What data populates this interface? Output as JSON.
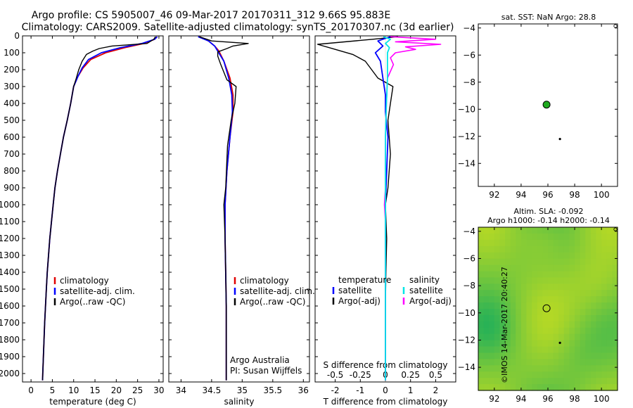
{
  "header": {
    "line1": "Argo profile: CS 5905007_46 09-Mar-2017 20170311_312 9.66S 95.883E",
    "line2": "Climatology: CARS2009. Satellite-adjusted climatology: synTS_20170307.nc (3d earlier)"
  },
  "credit": "©IMOS 14-Mar-2017 20:40:27",
  "colors": {
    "climatology": "#e00000",
    "satellite": "#0000ff",
    "argo": "#000000",
    "sal_satellite": "#00e6e6",
    "sal_argo": "#ff00ff",
    "marker": "#1faa1f"
  },
  "chart_data": [
    {
      "type": "line",
      "id": "temperature",
      "xlabel": "temperature (deg C)",
      "xlim": [
        -2,
        31
      ],
      "xticks": [
        0,
        5,
        10,
        15,
        20,
        25,
        30
      ],
      "ylim": [
        0,
        2050
      ],
      "yticks": [
        0,
        100,
        200,
        300,
        400,
        500,
        600,
        700,
        800,
        900,
        1000,
        1100,
        1200,
        1300,
        1400,
        1500,
        1600,
        1700,
        1800,
        1900,
        2000
      ],
      "legend": [
        "climatology",
        "satellite-adj. clim.",
        "Argo(..raw -QC)"
      ],
      "series": [
        {
          "name": "climatology",
          "points": [
            [
              29.6,
              5
            ],
            [
              29,
              20
            ],
            [
              26.5,
              45
            ],
            [
              22,
              70
            ],
            [
              17.5,
              100
            ],
            [
              14,
              140
            ],
            [
              12.2,
              190
            ],
            [
              11,
              240
            ],
            [
              10,
              300
            ],
            [
              9.3,
              400
            ],
            [
              8.5,
              500
            ],
            [
              7.6,
              600
            ],
            [
              6.9,
              700
            ],
            [
              6.2,
              800
            ],
            [
              5.6,
              900
            ],
            [
              5.2,
              1000
            ],
            [
              4.8,
              1100
            ],
            [
              4.4,
              1200
            ],
            [
              4.1,
              1300
            ],
            [
              3.8,
              1400
            ],
            [
              3.6,
              1500
            ],
            [
              3.4,
              1600
            ],
            [
              3.2,
              1700
            ],
            [
              3.05,
              1800
            ],
            [
              2.9,
              1900
            ],
            [
              2.75,
              2000
            ],
            [
              2.7,
              2040
            ]
          ]
        },
        {
          "name": "satellite-adj. clim.",
          "points": [
            [
              29.6,
              5
            ],
            [
              29,
              20
            ],
            [
              26,
              45
            ],
            [
              21,
              70
            ],
            [
              16.5,
              100
            ],
            [
              13.5,
              140
            ],
            [
              12,
              190
            ],
            [
              11,
              240
            ],
            [
              10,
              300
            ],
            [
              9.3,
              400
            ],
            [
              8.5,
              500
            ],
            [
              7.6,
              600
            ],
            [
              6.9,
              700
            ],
            [
              6.2,
              800
            ],
            [
              5.6,
              900
            ],
            [
              5.2,
              1000
            ],
            [
              4.8,
              1100
            ],
            [
              4.4,
              1200
            ],
            [
              4.1,
              1300
            ],
            [
              3.8,
              1400
            ],
            [
              3.6,
              1500
            ],
            [
              3.4,
              1600
            ],
            [
              3.2,
              1700
            ],
            [
              3.05,
              1800
            ],
            [
              2.9,
              1900
            ],
            [
              2.75,
              2000
            ],
            [
              2.7,
              2040
            ]
          ]
        },
        {
          "name": "Argo(..raw -QC)",
          "points": [
            [
              29.2,
              5
            ],
            [
              28.8,
              20
            ],
            [
              27.2,
              45
            ],
            [
              19,
              60
            ],
            [
              16,
              75
            ],
            [
              14.5,
              90
            ],
            [
              13,
              110
            ],
            [
              12,
              150
            ],
            [
              11.2,
              200
            ],
            [
              10.5,
              260
            ],
            [
              10,
              300
            ],
            [
              9.3,
              400
            ],
            [
              8.5,
              500
            ],
            [
              7.6,
              600
            ],
            [
              6.9,
              700
            ],
            [
              6.2,
              800
            ],
            [
              5.6,
              900
            ],
            [
              5.2,
              1000
            ],
            [
              4.8,
              1100
            ],
            [
              4.4,
              1200
            ],
            [
              4.1,
              1300
            ],
            [
              3.8,
              1400
            ],
            [
              3.6,
              1500
            ],
            [
              3.4,
              1600
            ],
            [
              3.2,
              1700
            ],
            [
              3.05,
              1800
            ],
            [
              2.9,
              1900
            ],
            [
              2.75,
              2000
            ],
            [
              2.7,
              2040
            ]
          ]
        }
      ]
    },
    {
      "type": "line",
      "id": "salinity",
      "xlabel": "salinity",
      "xlim": [
        33.8,
        36.1
      ],
      "xticks": [
        34,
        34.5,
        35,
        35.5,
        36
      ],
      "xticklabels": [
        "34",
        "34.5",
        "35",
        "35.5",
        "36"
      ],
      "ylim": [
        0,
        2050
      ],
      "legend": [
        "climatology",
        "satellite-adj. clim.",
        "Argo(..raw -QC)"
      ],
      "annotation": [
        "Argo Australia",
        "PI: Susan Wijffels"
      ],
      "series": [
        {
          "name": "climatology",
          "points": [
            [
              34.3,
              5
            ],
            [
              34.45,
              30
            ],
            [
              34.55,
              60
            ],
            [
              34.62,
              90
            ],
            [
              34.7,
              150
            ],
            [
              34.8,
              250
            ],
            [
              34.85,
              350
            ],
            [
              34.85,
              450
            ],
            [
              34.8,
              600
            ],
            [
              34.75,
              800
            ],
            [
              34.72,
              1000
            ],
            [
              34.72,
              1200
            ],
            [
              34.73,
              1400
            ],
            [
              34.74,
              1600
            ],
            [
              34.74,
              1800
            ],
            [
              34.74,
              2040
            ]
          ]
        },
        {
          "name": "satellite-adj. clim.",
          "points": [
            [
              34.28,
              5
            ],
            [
              34.45,
              30
            ],
            [
              34.55,
              60
            ],
            [
              34.6,
              90
            ],
            [
              34.7,
              150
            ],
            [
              34.78,
              250
            ],
            [
              34.83,
              350
            ],
            [
              34.84,
              450
            ],
            [
              34.8,
              600
            ],
            [
              34.75,
              800
            ],
            [
              34.72,
              1000
            ],
            [
              34.72,
              1200
            ],
            [
              34.73,
              1400
            ],
            [
              34.74,
              1600
            ],
            [
              34.74,
              1800
            ],
            [
              34.74,
              2040
            ]
          ]
        },
        {
          "name": "Argo(..raw -QC)",
          "points": [
            [
              34.3,
              5
            ],
            [
              34.5,
              30
            ],
            [
              35.1,
              45
            ],
            [
              34.85,
              60
            ],
            [
              34.75,
              75
            ],
            [
              34.6,
              95
            ],
            [
              34.6,
              120
            ],
            [
              34.65,
              170
            ],
            [
              34.75,
              260
            ],
            [
              34.9,
              300
            ],
            [
              34.88,
              400
            ],
            [
              34.82,
              500
            ],
            [
              34.76,
              650
            ],
            [
              34.73,
              900
            ],
            [
              34.7,
              1000
            ],
            [
              34.72,
              1200
            ],
            [
              34.73,
              1400
            ],
            [
              34.74,
              1600
            ],
            [
              34.74,
              1800
            ],
            [
              34.74,
              2040
            ]
          ]
        }
      ]
    },
    {
      "type": "line",
      "id": "difference",
      "xlabel": "T difference from climatology",
      "xlabel_top": "S difference from climatology",
      "xlim": [
        -2.8,
        2.8
      ],
      "xticks": [
        -2,
        -1,
        0,
        1,
        2
      ],
      "xticks_top": [
        -0.5,
        -0.25,
        0,
        0.25,
        0.5
      ],
      "ylim": [
        0,
        2050
      ],
      "legend": {
        "left_title": "temperature",
        "right_title": "salinity",
        "left": [
          "satellite",
          "Argo(-adj)"
        ],
        "right": [
          "satellite",
          "Argo(-adj)"
        ]
      },
      "series": [
        {
          "name": "T satellite",
          "points": [
            [
              0.2,
              5
            ],
            [
              -0.3,
              30
            ],
            [
              -0.1,
              60
            ],
            [
              -0.4,
              100
            ],
            [
              -0.2,
              150
            ],
            [
              -0.1,
              250
            ],
            [
              0,
              350
            ],
            [
              0,
              450
            ],
            [
              0.1,
              600
            ],
            [
              0.05,
              800
            ],
            [
              0,
              1000
            ],
            [
              0,
              1200
            ],
            [
              0,
              1400
            ],
            [
              0,
              1600
            ],
            [
              0,
              1800
            ],
            [
              0,
              2040
            ]
          ]
        },
        {
          "name": "T Argo(-adj)",
          "points": [
            [
              0.5,
              5
            ],
            [
              -0.5,
              20
            ],
            [
              -2.7,
              50
            ],
            [
              -2,
              80
            ],
            [
              -1.3,
              110
            ],
            [
              -0.8,
              150
            ],
            [
              -0.3,
              250
            ],
            [
              0.3,
              300
            ],
            [
              0.2,
              400
            ],
            [
              0.1,
              500
            ],
            [
              0.2,
              700
            ],
            [
              0.1,
              900
            ],
            [
              0,
              1000
            ],
            [
              0.05,
              1200
            ],
            [
              0.02,
              1400
            ],
            [
              0,
              1600
            ],
            [
              0,
              1800
            ],
            [
              0,
              2040
            ]
          ]
        },
        {
          "name": "S satellite",
          "points": [
            [
              -0.02,
              5
            ],
            [
              0.05,
              20
            ],
            [
              0,
              45
            ],
            [
              0.04,
              70
            ],
            [
              0.02,
              100
            ],
            [
              0.02,
              150
            ],
            [
              0.02,
              250
            ],
            [
              0.01,
              400
            ],
            [
              0,
              600
            ],
            [
              0,
              800
            ],
            [
              0,
              1000
            ],
            [
              0,
              1200
            ],
            [
              0,
              1400
            ],
            [
              0,
              1600
            ],
            [
              0,
              1800
            ],
            [
              0,
              2040
            ]
          ]
        },
        {
          "name": "S Argo(-adj)",
          "points": [
            [
              0.05,
              5
            ],
            [
              0.5,
              20
            ],
            [
              0.1,
              35
            ],
            [
              0.55,
              50
            ],
            [
              0.2,
              65
            ],
            [
              0.3,
              80
            ],
            [
              0.1,
              100
            ],
            [
              0.05,
              130
            ],
            [
              0.08,
              170
            ],
            [
              0.02,
              250
            ],
            [
              0.01,
              400
            ],
            [
              0,
              600
            ],
            [
              0,
              900
            ],
            [
              -0.01,
              1000
            ],
            [
              0,
              1100
            ],
            [
              0,
              1200
            ],
            [
              0,
              1400
            ],
            [
              0,
              2040
            ]
          ]
        }
      ]
    },
    {
      "type": "scatter",
      "id": "sst-map",
      "title": "sat. SST: NaN Argo: 28.8",
      "xlim": [
        90.8,
        101.2
      ],
      "ylim": [
        -15.7,
        -3.7
      ],
      "xticks": [
        92,
        94,
        96,
        98,
        100
      ],
      "yticks": [
        -4,
        -6,
        -8,
        -10,
        -12,
        -14
      ],
      "points": [
        {
          "name": "argo-location",
          "lon": 95.9,
          "lat": -9.66
        },
        {
          "name": "prev-location",
          "lon": 96.9,
          "lat": -12.2
        }
      ]
    },
    {
      "type": "heatmap",
      "id": "sla-map",
      "title": [
        "Altim. SLA: -0.092",
        "Argo h1000: -0.14 h2000: -0.14"
      ],
      "xlim": [
        90.8,
        101.2
      ],
      "ylim": [
        -15.7,
        -3.7
      ],
      "xticks": [
        92,
        94,
        96,
        98,
        100
      ],
      "yticks": [
        -4,
        -6,
        -8,
        -10,
        -12,
        -14
      ],
      "points": [
        {
          "name": "argo-location",
          "lon": 95.9,
          "lat": -9.66
        },
        {
          "name": "prev-location",
          "lon": 96.9,
          "lat": -12.2
        }
      ]
    }
  ]
}
